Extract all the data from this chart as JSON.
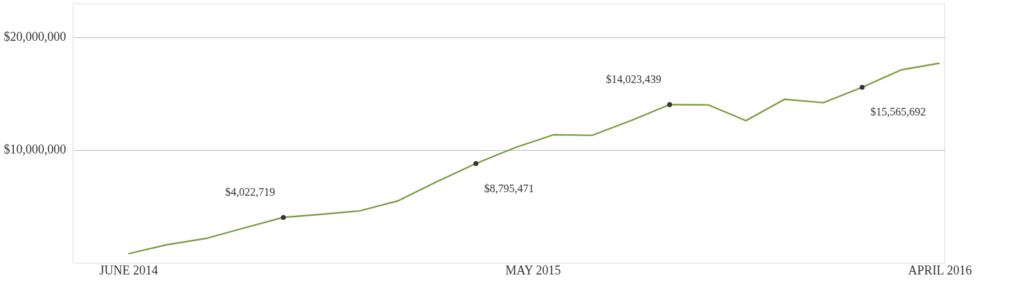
{
  "chart_data": {
    "type": "line",
    "x": [
      "2014-06-01",
      "2014-07-03",
      "2014-08-04",
      "2014-09-05",
      "2014-10-07",
      "2014-11-08",
      "2014-12-09",
      "2015-01-10",
      "2015-02-11",
      "2015-03-15",
      "2015-04-16",
      "2015-05-18",
      "2015-06-19",
      "2015-07-21",
      "2015-08-22",
      "2015-09-23",
      "2015-10-24",
      "2015-11-25",
      "2015-12-27",
      "2016-01-28",
      "2016-02-29",
      "2016-04-01"
    ],
    "series": [
      {
        "color": "#7a9a3a",
        "values": [
          800000,
          1600000,
          2150000,
          3100000,
          4022719,
          4300000,
          4600000,
          5500000,
          7200000,
          8795471,
          10200000,
          11350000,
          11300000,
          12600000,
          14023439,
          14000000,
          12600000,
          14500000,
          14200000,
          15565692,
          17100000,
          17700000
        ]
      },
      {
        "type": "scatter",
        "color": "#333333",
        "marker": "circle",
        "x": [
          "2014-10-07",
          "2015-03-15",
          "2015-08-22",
          "2016-01-28"
        ],
        "values": [
          4022719,
          8795471,
          14023439,
          15565692
        ]
      }
    ],
    "xlim": [
      "2014-04-16",
      "2016-04-05"
    ],
    "xticks": [
      {
        "value": "2014-06-01",
        "label": "JUNE 2014"
      },
      {
        "value": "2015-05-01",
        "label": "MAY 2015"
      },
      {
        "value": "2016-04-01",
        "label": "APRIL 2016"
      }
    ],
    "ylim": [
      0,
      23000000
    ],
    "yticks": [
      {
        "value": 10000000,
        "label": "$10,000,000"
      },
      {
        "value": 20000000,
        "label": "$20,000,000"
      }
    ],
    "grid": "y",
    "marker": "none",
    "line_style": "solid",
    "annotations": [
      {
        "text": "$4,022,719",
        "x": "2014-10-07",
        "y": 4022719
      },
      {
        "text": "$8,795,471",
        "x": "2015-03-15",
        "y": 8795471
      },
      {
        "text": "$14,023,439",
        "x": "2015-08-22",
        "y": 14023439
      },
      {
        "text": "$15,565,692",
        "x": "2016-01-28",
        "y": 15565692
      }
    ]
  }
}
